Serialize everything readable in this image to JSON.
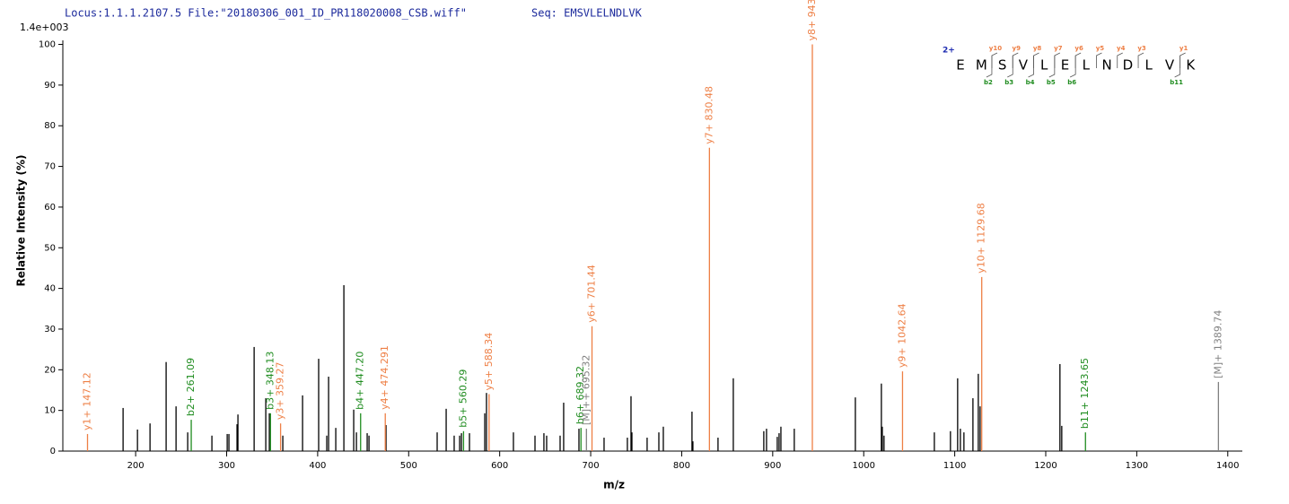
{
  "chart_data": {
    "type": "stick",
    "header": "Locus:1.1.1.2107.5 File:\"20180306_001_ID_PR118020008_CSB.wiff\"",
    "sequence_header": "Seq: EMSVLELNDLVK",
    "scale_label": "1.4e+003",
    "x_label": "m/z",
    "y_label": "Relative  Intensity (%)",
    "xlim": [
      120,
      1416
    ],
    "ylim": [
      0,
      101
    ],
    "xticks": [
      200,
      300,
      400,
      500,
      600,
      700,
      800,
      900,
      1000,
      1100,
      1200,
      1300,
      1400
    ],
    "yticks": [
      0,
      10,
      20,
      30,
      40,
      50,
      60,
      70,
      80,
      90,
      100
    ],
    "color": "#000000",
    "x": [
      186.2,
      202,
      215.8,
      233.5,
      244.4,
      257.2,
      283.8,
      300.6,
      302.5,
      311.4,
      312.4,
      330.2,
      343,
      346.9,
      361.7,
      383.4,
      401.1,
      410,
      412,
      419.9,
      428.8,
      439.6,
      442.6,
      454.4,
      456.4,
      475.1,
      531.3,
      541.2,
      550,
      556,
      558,
      566.8,
      583.6,
      585.5,
      615.1,
      638.8,
      648.6,
      651.6,
      666.4,
      670.3,
      687.1,
      714.7,
      740.3,
      744.3,
      745.3,
      762,
      774.9,
      779.8,
      811.3,
      812.3,
      839.9,
      856.7,
      890.2,
      893.2,
      905,
      907,
      909,
      923.7,
      990.8,
      1019.4,
      1020.4,
      1022.3,
      1077.6,
      1095.3,
      1103.2,
      1106.2,
      1110.1,
      1120,
      1125.9,
      1127.9,
      1215.6,
      1217.6
    ],
    "values": [
      10.6,
      5.3,
      6.8,
      21.9,
      11,
      4.6,
      3.8,
      4.2,
      4.2,
      6.6,
      9,
      25.6,
      13,
      9.3,
      3.8,
      13.7,
      22.7,
      3.8,
      18.3,
      5.7,
      40.8,
      10.2,
      4.6,
      4.4,
      3.8,
      6.4,
      4.6,
      10.4,
      3.8,
      3.8,
      4.4,
      4.4,
      9.3,
      14.3,
      4.6,
      3.8,
      4.4,
      3.8,
      3.8,
      11.9,
      5.5,
      3.3,
      3.3,
      13.5,
      4.6,
      3.3,
      4.6,
      6,
      9.7,
      2.4,
      3.3,
      17.9,
      4.9,
      5.5,
      3.5,
      4.4,
      6,
      5.5,
      13.2,
      16.6,
      6,
      3.8,
      4.6,
      4.9,
      17.9,
      5.5,
      4.6,
      13,
      19,
      11,
      21.4,
      6.2
    ],
    "labeled_peaks": [
      {
        "label": "y1+ 147.12",
        "x": 147.12,
        "value": 4.2,
        "color": "#ee7f45"
      },
      {
        "label": "b2+ 261.09",
        "x": 261.09,
        "value": 7.7,
        "color": "#1f8c1f"
      },
      {
        "label": "b3+ 348.13",
        "x": 348.13,
        "value": 9.3,
        "color": "#1f8c1f"
      },
      {
        "label": "y3+ 359.27",
        "x": 359.27,
        "value": 6.8,
        "color": "#ee7f45"
      },
      {
        "label": "b4+ 447.20",
        "x": 447.2,
        "value": 9.3,
        "color": "#1f8c1f"
      },
      {
        "label": "y4+ 474.291",
        "x": 474.291,
        "value": 9.3,
        "color": "#ee7f45"
      },
      {
        "label": "b5+ 560.29",
        "x": 560.29,
        "value": 4.9,
        "color": "#1f8c1f"
      },
      {
        "label": "y5+ 588.34",
        "x": 588.34,
        "value": 14,
        "color": "#ee7f45"
      },
      {
        "label": "b6+ 689.32",
        "x": 689.32,
        "value": 5.7,
        "color": "#1f8c1f"
      },
      {
        "label": "[M]++ 695.32",
        "x": 695.32,
        "value": 5.5,
        "color": "#808080"
      },
      {
        "label": "y6+ 701.44",
        "x": 701.44,
        "value": 30.7,
        "color": "#ee7f45"
      },
      {
        "label": "y7+ 830.48",
        "x": 830.48,
        "value": 74.6,
        "color": "#ee7f45"
      },
      {
        "label": "y8+ 943.55",
        "x": 943.55,
        "value": 100,
        "color": "#ee7f45"
      },
      {
        "label": "y9+ 1042.64",
        "x": 1042.64,
        "value": 19.6,
        "color": "#ee7f45"
      },
      {
        "label": "y10+ 1129.68",
        "x": 1129.68,
        "value": 42.8,
        "color": "#ee7f45"
      },
      {
        "label": "b11+ 1243.65",
        "x": 1243.65,
        "value": 4.6,
        "color": "#1f8c1f"
      },
      {
        "label": "[M]+ 1389.74",
        "x": 1389.74,
        "value": 17,
        "color": "#808080"
      }
    ],
    "annotation": {
      "charge": "2+",
      "residues": [
        "E",
        "M",
        "S",
        "V",
        "L",
        "E",
        "L",
        "N",
        "D",
        "L",
        "V",
        "K"
      ],
      "y_ions": [
        "y10",
        "y9",
        "y8",
        "y7",
        "y6",
        "y5",
        "y4",
        "y3",
        "y1"
      ],
      "b_ions": [
        "b2",
        "b3",
        "b4",
        "b5",
        "b6",
        "b11"
      ]
    }
  }
}
